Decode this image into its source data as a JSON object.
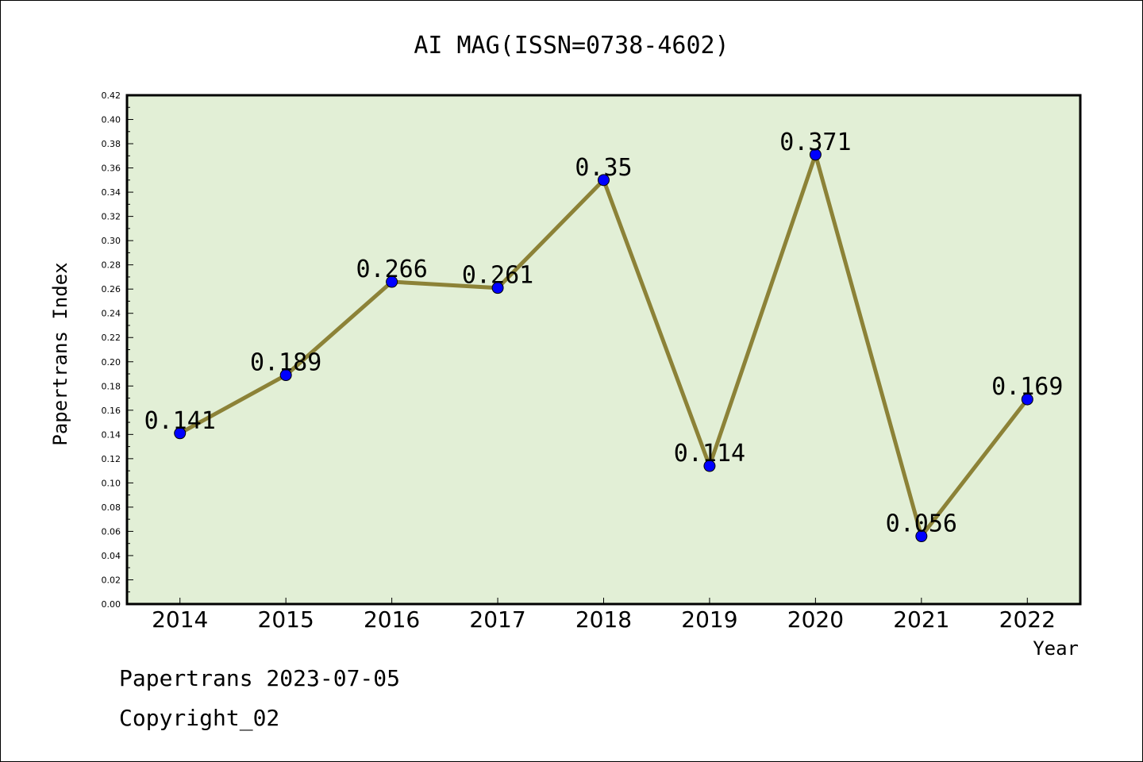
{
  "chart_data": {
    "type": "line",
    "title": "AI MAG(ISSN=0738-4602)",
    "xlabel": "Year",
    "ylabel": "Papertrans Index",
    "categories": [
      "2014",
      "2015",
      "2016",
      "2017",
      "2018",
      "2019",
      "2020",
      "2021",
      "2022"
    ],
    "series": [
      {
        "values": [
          0.141,
          0.189,
          0.266,
          0.261,
          0.35,
          0.114,
          0.371,
          0.056,
          0.169
        ],
        "labels": [
          "0.141",
          "0.189",
          "0.266",
          "0.261",
          "0.35",
          "0.114",
          "0.371",
          "0.056",
          "0.169"
        ],
        "line_color": "#8c8237",
        "marker_color": "#0000ff"
      }
    ],
    "ylim": [
      0,
      0.42
    ],
    "yticks": [
      "0.00",
      "0.02",
      "0.04",
      "0.06",
      "0.08",
      "0.10",
      "0.12",
      "0.14",
      "0.16",
      "0.18",
      "0.20",
      "0.22",
      "0.24",
      "0.26",
      "0.28",
      "0.30",
      "0.32",
      "0.34",
      "0.36",
      "0.38",
      "0.40",
      "0.42"
    ],
    "plot_background": "#e2efd6",
    "grid": false,
    "legend": "none"
  },
  "footer": {
    "line1": "Papertrans 2023-07-05",
    "line2": "Copyright_02"
  }
}
